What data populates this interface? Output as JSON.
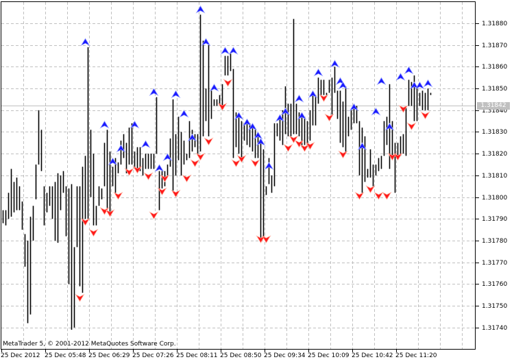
{
  "chart_data": {
    "type": "bar",
    "style": "HL bars with fractal arrows",
    "ylim": [
      1.31735,
      1.3189
    ],
    "y_ticks": [
      "1.31880",
      "1.31870",
      "1.31860",
      "1.31850",
      "1.31840",
      "1.31830",
      "1.31820",
      "1.31810",
      "1.31800",
      "1.31790",
      "1.31780",
      "1.31770",
      "1.31760",
      "1.31750",
      "1.31740"
    ],
    "x_ticks": [
      "25 Dec 2012",
      "25 Dec 05:48",
      "25 Dec 06:29",
      "25 Dec 07:26",
      "25 Dec 08:11",
      "25 Dec 08:50",
      "25 Dec 09:34",
      "25 Dec 10:09",
      "25 Dec 10:42",
      "25 Dec 11:20"
    ],
    "current_price": "1.31842",
    "grid": true,
    "colors": {
      "bars": "#000000",
      "up_fractal": "#1a1aff",
      "down_fractal": "#ff1a1a",
      "grid": "#c0c0c0",
      "price_line": "#c0c0c0"
    },
    "bars_high_low": [
      [
        1.31794,
        1.31788
      ],
      [
        1.31794,
        1.31787
      ],
      [
        1.31802,
        1.3179
      ],
      [
        1.31813,
        1.31791
      ],
      [
        1.31807,
        1.31793
      ],
      [
        1.31809,
        1.31794
      ],
      [
        1.31805,
        1.31794
      ],
      [
        1.31798,
        1.31785
      ],
      [
        1.31783,
        1.31768
      ],
      [
        1.3178,
        1.31742
      ],
      [
        1.31791,
        1.31746
      ],
      [
        1.31796,
        1.3178
      ],
      [
        1.31815,
        1.31799
      ],
      [
        1.3184,
        1.31815
      ],
      [
        1.31831,
        1.31812
      ],
      [
        1.31805,
        1.31787
      ],
      [
        1.31802,
        1.31793
      ],
      [
        1.31805,
        1.31796
      ],
      [
        1.31805,
        1.3179
      ],
      [
        1.31807,
        1.3178
      ],
      [
        1.31811,
        1.31779
      ],
      [
        1.3181,
        1.31794
      ],
      [
        1.31812,
        1.31802
      ],
      [
        1.31805,
        1.31782
      ],
      [
        1.31804,
        1.3176
      ],
      [
        1.31806,
        1.31739
      ],
      [
        1.31777,
        1.3174
      ],
      [
        1.31805,
        1.31777
      ],
      [
        1.31805,
        1.31759
      ],
      [
        1.31814,
        1.31756
      ],
      [
        1.31819,
        1.3179
      ],
      [
        1.31869,
        1.3179
      ],
      [
        1.31831,
        1.318
      ],
      [
        1.3182,
        1.31787
      ],
      [
        1.31796,
        1.31787
      ],
      [
        1.31805,
        1.31796
      ],
      [
        1.31804,
        1.31799
      ],
      [
        1.31825,
        1.31805
      ],
      [
        1.31831,
        1.31795
      ],
      [
        1.31821,
        1.31793
      ],
      [
        1.31814,
        1.31805
      ],
      [
        1.31818,
        1.31802
      ],
      [
        1.31816,
        1.31811
      ],
      [
        1.31826,
        1.31815
      ],
      [
        1.31829,
        1.31818
      ],
      [
        1.31825,
        1.31811
      ],
      [
        1.31832,
        1.31815
      ],
      [
        1.31834,
        1.31815
      ],
      [
        1.31821,
        1.31813
      ],
      [
        1.31823,
        1.31812
      ],
      [
        1.31823,
        1.31812
      ],
      [
        1.31818,
        1.3181
      ],
      [
        1.3182,
        1.31813
      ],
      [
        1.3182,
        1.31813
      ],
      [
        1.3182,
        1.31813
      ],
      [
        1.3182,
        1.31813
      ],
      [
        1.31846,
        1.3182
      ],
      [
        1.31812,
        1.31794
      ],
      [
        1.31812,
        1.31804
      ],
      [
        1.31812,
        1.31805
      ],
      [
        1.31815,
        1.3181
      ],
      [
        1.31827,
        1.31814
      ],
      [
        1.31845,
        1.31803
      ],
      [
        1.31829,
        1.3181
      ],
      [
        1.31837,
        1.31817
      ],
      [
        1.3183,
        1.3181
      ],
      [
        1.31826,
        1.31815
      ],
      [
        1.3182,
        1.31817
      ],
      [
        1.31835,
        1.31818
      ],
      [
        1.31831,
        1.31821
      ],
      [
        1.31829,
        1.31823
      ],
      [
        1.31829,
        1.3182
      ],
      [
        1.31884,
        1.31821
      ],
      [
        1.31872,
        1.31828
      ],
      [
        1.3185,
        1.31835
      ],
      [
        1.3187,
        1.31828
      ],
      [
        1.31849,
        1.31836
      ],
      [
        1.31845,
        1.31842
      ],
      [
        1.31845,
        1.31842
      ],
      [
        1.31847,
        1.31843
      ],
      [
        1.31852,
        1.31842
      ],
      [
        1.31865,
        1.31856
      ],
      [
        1.31865,
        1.31856
      ],
      [
        1.31866,
        1.31858
      ],
      [
        1.31859,
        1.31818
      ],
      [
        1.31839,
        1.31823
      ],
      [
        1.31837,
        1.3182
      ],
      [
        1.31835,
        1.31818
      ],
      [
        1.31834,
        1.31826
      ],
      [
        1.31834,
        1.31824
      ],
      [
        1.31834,
        1.31823
      ],
      [
        1.31832,
        1.31821
      ],
      [
        1.31831,
        1.31818
      ],
      [
        1.31829,
        1.31818
      ],
      [
        1.31825,
        1.31781
      ],
      [
        1.31822,
        1.31782
      ],
      [
        1.31805,
        1.31801
      ],
      [
        1.31818,
        1.31806
      ],
      [
        1.3181,
        1.31802
      ],
      [
        1.31834,
        1.31805
      ],
      [
        1.31834,
        1.31828
      ],
      [
        1.31837,
        1.31826
      ],
      [
        1.3184,
        1.31824
      ],
      [
        1.31851,
        1.31829
      ],
      [
        1.31843,
        1.31828
      ],
      [
        1.31843,
        1.31828
      ],
      [
        1.31882,
        1.31829
      ],
      [
        1.31843,
        1.31829
      ],
      [
        1.31839,
        1.31828
      ],
      [
        1.31837,
        1.31823
      ],
      [
        1.31837,
        1.31824
      ],
      [
        1.31835,
        1.31823
      ],
      [
        1.3184,
        1.31826
      ],
      [
        1.31847,
        1.31833
      ],
      [
        1.31847,
        1.31833
      ],
      [
        1.31855,
        1.31843
      ],
      [
        1.31854,
        1.31847
      ],
      [
        1.31854,
        1.31847
      ],
      [
        1.31848,
        1.31847
      ],
      [
        1.31854,
        1.31848
      ],
      [
        1.31855,
        1.31838
      ],
      [
        1.3186,
        1.31848
      ],
      [
        1.31849,
        1.31836
      ],
      [
        1.31849,
        1.31825
      ],
      [
        1.31844,
        1.31823
      ],
      [
        1.31851,
        1.3182
      ],
      [
        1.31837,
        1.31828
      ],
      [
        1.3184,
        1.31831
      ],
      [
        1.31842,
        1.31834
      ],
      [
        1.31842,
        1.31834
      ],
      [
        1.31835,
        1.3181
      ],
      [
        1.31832,
        1.31802
      ],
      [
        1.31828,
        1.31807
      ],
      [
        1.31813,
        1.31809
      ],
      [
        1.31822,
        1.31809
      ],
      [
        1.31815,
        1.31805
      ],
      [
        1.31815,
        1.3181
      ],
      [
        1.31818,
        1.31812
      ],
      [
        1.31819,
        1.31813
      ],
      [
        1.31835,
        1.31819
      ],
      [
        1.31837,
        1.31824
      ],
      [
        1.31852,
        1.31813
      ],
      [
        1.31835,
        1.31818
      ],
      [
        1.31825,
        1.31802
      ],
      [
        1.31825,
        1.31819
      ],
      [
        1.31828,
        1.31819
      ],
      [
        1.31829,
        1.3182
      ],
      [
        1.31841,
        1.31819
      ],
      [
        1.31854,
        1.31842
      ],
      [
        1.31853,
        1.31842
      ],
      [
        1.31856,
        1.31835
      ],
      [
        1.3185,
        1.31835
      ],
      [
        1.31848,
        1.31842
      ],
      [
        1.31849,
        1.3184
      ],
      [
        1.31848,
        1.3184
      ],
      [
        1.3185,
        1.3184
      ],
      [
        1.31848,
        1.31847
      ]
    ],
    "up_fractals": [
      [
        30,
        1.31873
      ],
      [
        37,
        1.31835
      ],
      [
        40,
        1.31818
      ],
      [
        43,
        1.31824
      ],
      [
        48,
        1.31835
      ],
      [
        52,
        1.31826
      ],
      [
        55,
        1.3185
      ],
      [
        57,
        1.31815
      ],
      [
        60,
        1.3182
      ],
      [
        63,
        1.31849
      ],
      [
        66,
        1.3184
      ],
      [
        69,
        1.31829
      ],
      [
        72,
        1.31888
      ],
      [
        74,
        1.31873
      ],
      [
        77,
        1.31852
      ],
      [
        81,
        1.31869
      ],
      [
        84,
        1.31869
      ],
      [
        86,
        1.31839
      ],
      [
        89,
        1.31836
      ],
      [
        91,
        1.31834
      ],
      [
        93,
        1.3183
      ],
      [
        94,
        1.31827
      ],
      [
        97,
        1.31816
      ],
      [
        101,
        1.31838
      ],
      [
        103,
        1.31841
      ],
      [
        108,
        1.31847
      ],
      [
        109,
        1.31839
      ],
      [
        113,
        1.31849
      ],
      [
        115,
        1.31859
      ],
      [
        121,
        1.31863
      ],
      [
        123,
        1.31855
      ],
      [
        124,
        1.31853
      ],
      [
        128,
        1.31843
      ],
      [
        131,
        1.31825
      ],
      [
        136,
        1.31841
      ],
      [
        138,
        1.31855
      ],
      [
        141,
        1.31834
      ],
      [
        145,
        1.31857
      ],
      [
        148,
        1.3186
      ],
      [
        150,
        1.31853
      ],
      [
        152,
        1.31853
      ],
      [
        155,
        1.31854
      ]
    ],
    "down_fractals": [
      [
        28,
        1.31752
      ],
      [
        30,
        1.31787
      ],
      [
        33,
        1.31782
      ],
      [
        37,
        1.31792
      ],
      [
        39,
        1.31791
      ],
      [
        42,
        1.31799
      ],
      [
        46,
        1.3181
      ],
      [
        49,
        1.31811
      ],
      [
        53,
        1.31808
      ],
      [
        55,
        1.3179
      ],
      [
        58,
        1.31801
      ],
      [
        59,
        1.31807
      ],
      [
        63,
        1.318
      ],
      [
        67,
        1.31807
      ],
      [
        70,
        1.31814
      ],
      [
        72,
        1.31817
      ],
      [
        75,
        1.31824
      ],
      [
        80,
        1.3184
      ],
      [
        82,
        1.31851
      ],
      [
        85,
        1.31814
      ],
      [
        87,
        1.31816
      ],
      [
        92,
        1.31814
      ],
      [
        94,
        1.31779
      ],
      [
        96,
        1.31779
      ],
      [
        104,
        1.31821
      ],
      [
        106,
        1.31825
      ],
      [
        108,
        1.31823
      ],
      [
        110,
        1.31821
      ],
      [
        112,
        1.31822
      ],
      [
        117,
        1.31844
      ],
      [
        119,
        1.31835
      ],
      [
        124,
        1.31818
      ],
      [
        130,
        1.31799
      ],
      [
        134,
        1.31802
      ],
      [
        137,
        1.31799
      ],
      [
        140,
        1.31799
      ],
      [
        142,
        1.31817
      ],
      [
        144,
        1.31817
      ],
      [
        146,
        1.31839
      ],
      [
        149,
        1.31831
      ],
      [
        154,
        1.31836
      ]
    ]
  },
  "footer": {
    "copyright": "MetaTrader 5, © 2001-2012 MetaQuotes Software Corp."
  }
}
